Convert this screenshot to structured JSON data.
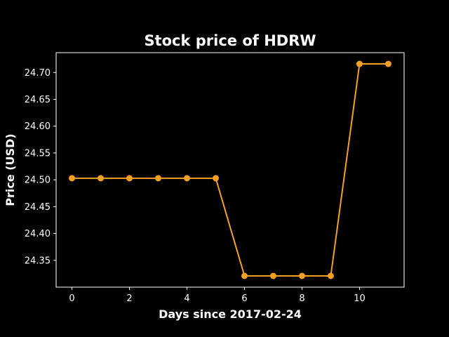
{
  "chart_data": {
    "type": "line",
    "title": "Stock price of HDRW",
    "xlabel": "Days since 2017-02-24",
    "ylabel": "Price (USD)",
    "x": [
      0,
      1,
      2,
      3,
      4,
      5,
      6,
      7,
      8,
      9,
      10,
      11
    ],
    "series": [
      {
        "values": [
          24.503,
          24.503,
          24.503,
          24.503,
          24.503,
          24.503,
          24.321,
          24.321,
          24.321,
          24.321,
          24.716,
          24.716
        ]
      }
    ],
    "xlim": [
      -0.55,
      11.55
    ],
    "ylim": [
      24.3,
      24.737
    ],
    "xticks": [
      0,
      2,
      4,
      6,
      8,
      10
    ],
    "yticks": [
      24.35,
      24.4,
      24.45,
      24.5,
      24.55,
      24.6,
      24.65,
      24.7
    ],
    "ytick_labels": [
      "24.35",
      "24.40",
      "24.45",
      "24.50",
      "24.55",
      "24.60",
      "24.65",
      "24.70"
    ],
    "grid": false,
    "line_color": "#f5a020",
    "background": "#000000",
    "axis_color": "#ffffff"
  }
}
